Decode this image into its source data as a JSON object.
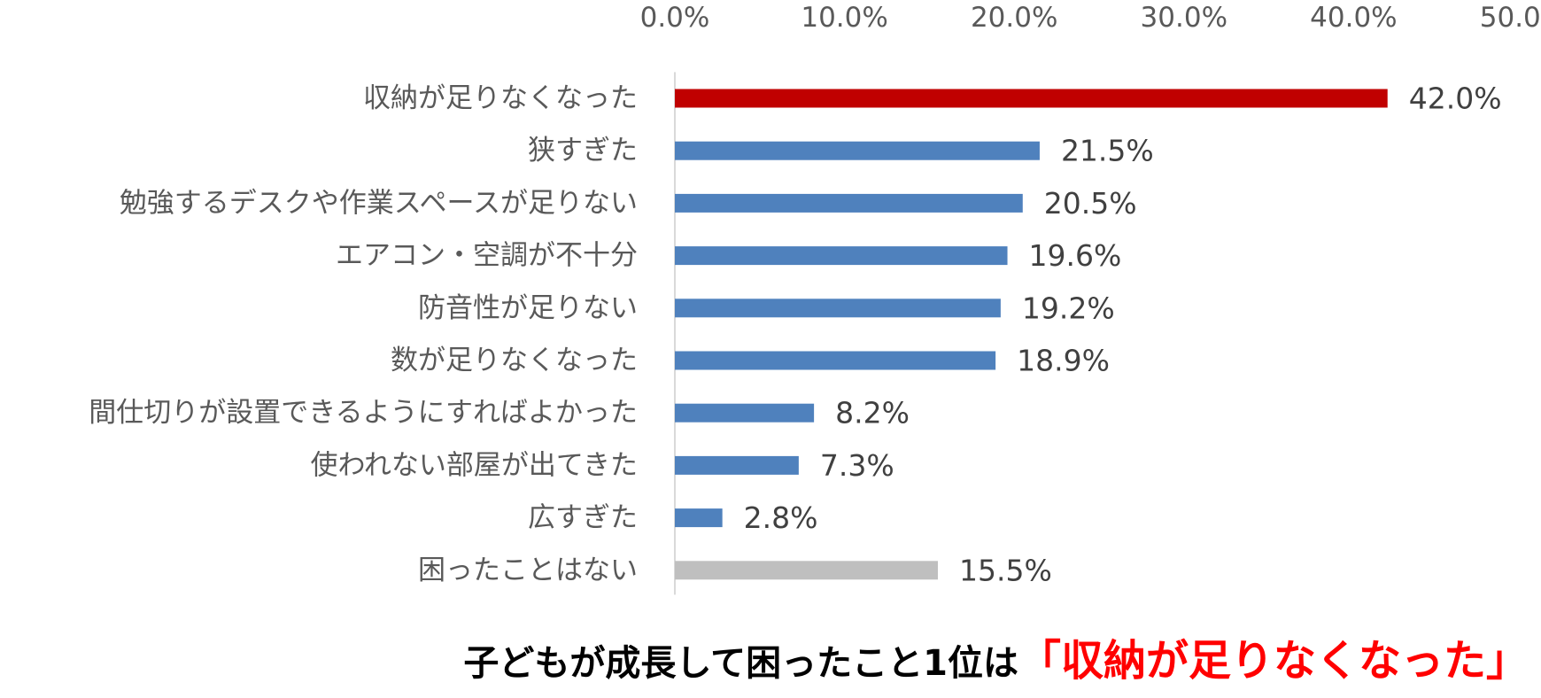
{
  "chart_data": {
    "type": "bar",
    "orientation": "horizontal",
    "categories": [
      "収納が足りなくなった",
      "狭すぎた",
      "勉強するデスクや作業スペースが足りない",
      "エアコン・空調が不十分",
      "防音性が足りない",
      "数が足りなくなった",
      "間仕切りが設置できるようにすればよかった",
      "使われない部屋が出てきた",
      "広すぎた",
      "困ったことはない"
    ],
    "values": [
      42.0,
      21.5,
      20.5,
      19.6,
      19.2,
      18.9,
      8.2,
      7.3,
      2.8,
      15.5
    ],
    "value_labels": [
      "42.0%",
      "21.5%",
      "20.5%",
      "19.6%",
      "19.2%",
      "18.9%",
      "8.2%",
      "7.3%",
      "2.8%",
      "15.5%"
    ],
    "bar_colors": [
      "#c00000",
      "#4f81bd",
      "#4f81bd",
      "#4f81bd",
      "#4f81bd",
      "#4f81bd",
      "#4f81bd",
      "#4f81bd",
      "#4f81bd",
      "#bfbfbf"
    ],
    "x_ticks": [
      "0.0%",
      "10.0%",
      "20.0%",
      "30.0%",
      "40.0%",
      "50.0%"
    ],
    "xlim": [
      0,
      50
    ],
    "x_axis_position": "top",
    "grid": false,
    "legend": "none",
    "title": ""
  },
  "caption": {
    "main": "子どもが成長して困ったこと1位は",
    "highlight": "「収納が足りなくなった」"
  }
}
